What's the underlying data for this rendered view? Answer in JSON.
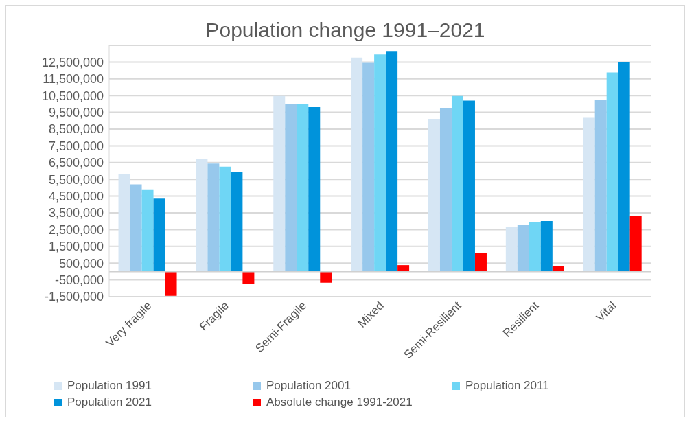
{
  "chart_data": {
    "type": "bar",
    "title": "Population change 1991–2021",
    "categories": [
      "Very fragile",
      "Fragile",
      "Semi-Fragile",
      "Mixed",
      "Semi-Resilient",
      "Resilient",
      "Vital"
    ],
    "series": [
      {
        "name": "Population 1991",
        "color": "#d6e6f4",
        "values": [
          5810000,
          6700000,
          10480000,
          12770000,
          9080000,
          2670000,
          9180000
        ]
      },
      {
        "name": "Population 2001",
        "color": "#97c8ec",
        "values": [
          5200000,
          6440000,
          10010000,
          12450000,
          9750000,
          2800000,
          10260000
        ]
      },
      {
        "name": "Population 2011",
        "color": "#6fd6f5",
        "values": [
          4860000,
          6260000,
          10010000,
          12960000,
          10480000,
          2950000,
          11880000
        ]
      },
      {
        "name": "Population 2021",
        "color": "#0093db",
        "values": [
          4350000,
          5930000,
          9810000,
          13120000,
          10200000,
          3010000,
          12500000
        ]
      },
      {
        "name": "Absolute change 1991-2021",
        "color": "#ff0000",
        "values": [
          -1450000,
          -730000,
          -670000,
          380000,
          1120000,
          340000,
          3300000
        ]
      }
    ],
    "ylim": [
      -1500000,
      13500000
    ],
    "yticks": [
      {
        "value": -1500000,
        "label": "-1,500,000"
      },
      {
        "value": -500000,
        "label": "-500,000"
      },
      {
        "value": 500000,
        "label": "500,000"
      },
      {
        "value": 1500000,
        "label": "1,500,000"
      },
      {
        "value": 2500000,
        "label": "2,500,000"
      },
      {
        "value": 3500000,
        "label": "3,500,000"
      },
      {
        "value": 4500000,
        "label": "4,500,000"
      },
      {
        "value": 5500000,
        "label": "5,500,000"
      },
      {
        "value": 6500000,
        "label": "6,500,000"
      },
      {
        "value": 7500000,
        "label": "7,500,000"
      },
      {
        "value": 8500000,
        "label": "8,500,000"
      },
      {
        "value": 9500000,
        "label": "9,500,000"
      },
      {
        "value": 10500000,
        "label": "10,500,000"
      },
      {
        "value": 11500000,
        "label": "11,500,000"
      },
      {
        "value": 12500000,
        "label": "12,500,000"
      }
    ],
    "grid": "y",
    "legend": "bottom"
  }
}
